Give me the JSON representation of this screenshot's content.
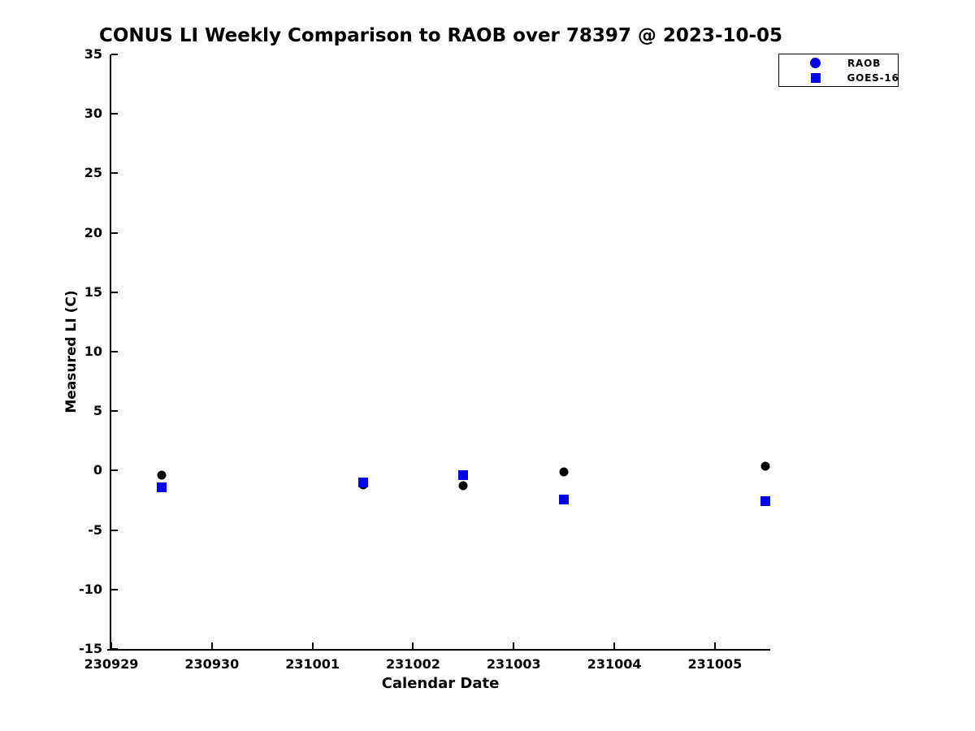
{
  "chart_data": {
    "type": "scatter",
    "title": "CONUS LI Weekly Comparison to RAOB over 78397 @ 2023-10-05",
    "xlabel": "Calendar Date",
    "ylabel": "Measured LI (C)",
    "x_ticks": {
      "labels": [
        "230929",
        "230930",
        "231001",
        "231002",
        "231003",
        "231004",
        "231005"
      ],
      "positions": [
        0,
        1,
        2,
        3,
        4,
        5,
        6
      ]
    },
    "xlim": [
      0,
      6.55
    ],
    "y_ticks": [
      35,
      30,
      25,
      20,
      15,
      10,
      5,
      0,
      -5,
      -10,
      -15
    ],
    "ylim": [
      -15,
      35
    ],
    "grid": false,
    "legend_position": "top-right-outside",
    "series": [
      {
        "name": "RAOB",
        "marker": "circle",
        "color": "#000000",
        "legend_marker_color": "#0000ee",
        "points": [
          {
            "x": 0.5,
            "y": -0.4
          },
          {
            "x": 2.5,
            "y": -1.2
          },
          {
            "x": 3.5,
            "y": -1.3
          },
          {
            "x": 4.5,
            "y": -0.1
          },
          {
            "x": 6.5,
            "y": 0.4
          }
        ]
      },
      {
        "name": "GOES-16",
        "marker": "square",
        "color": "#0000ee",
        "legend_marker_color": "#0000ee",
        "points": [
          {
            "x": 0.5,
            "y": -1.4
          },
          {
            "x": 2.5,
            "y": -1.0
          },
          {
            "x": 3.5,
            "y": -0.4
          },
          {
            "x": 4.5,
            "y": -2.4
          },
          {
            "x": 6.5,
            "y": -2.6
          }
        ]
      }
    ]
  }
}
